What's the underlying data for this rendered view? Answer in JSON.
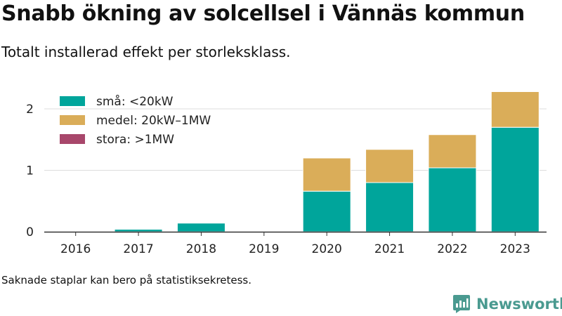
{
  "header": {
    "title": "Snabb ökning av solcellsel i Vännäs kommun",
    "subtitle": "Totalt installerad effekt per storleksklass."
  },
  "footer": {
    "note": "Saknade staplar kan bero på statistiksekretess.",
    "brand": "Newsworthy"
  },
  "colors": {
    "sma": "#00a59b",
    "medel": "#daad59",
    "stora": "#a8476b",
    "grid": "#dddddd",
    "axis": "#333333",
    "brand": "#4a9a90"
  },
  "icons": {
    "brand_logo": "newsworthy-logo-icon"
  },
  "chart_data": {
    "type": "bar",
    "stacked": true,
    "categories": [
      "2016",
      "2017",
      "2018",
      "2019",
      "2020",
      "2021",
      "2022",
      "2023"
    ],
    "series": [
      {
        "name": "små: <20kW",
        "color": "#00a59b",
        "values": [
          0,
          0.04,
          0.14,
          0,
          0.66,
          0.8,
          1.04,
          1.7
        ]
      },
      {
        "name": "medel: 20kW–1MW",
        "color": "#daad59",
        "values": [
          0,
          0,
          0,
          0,
          0.54,
          0.54,
          0.54,
          0.58
        ]
      },
      {
        "name": "stora: >1MW",
        "color": "#a8476b",
        "values": [
          0,
          0,
          0,
          0,
          0,
          0,
          0,
          0
        ]
      }
    ],
    "ylim": [
      0,
      2.4
    ],
    "yticks": [
      "0",
      "1",
      "2"
    ],
    "grid": true,
    "legend_position": "top-left"
  }
}
